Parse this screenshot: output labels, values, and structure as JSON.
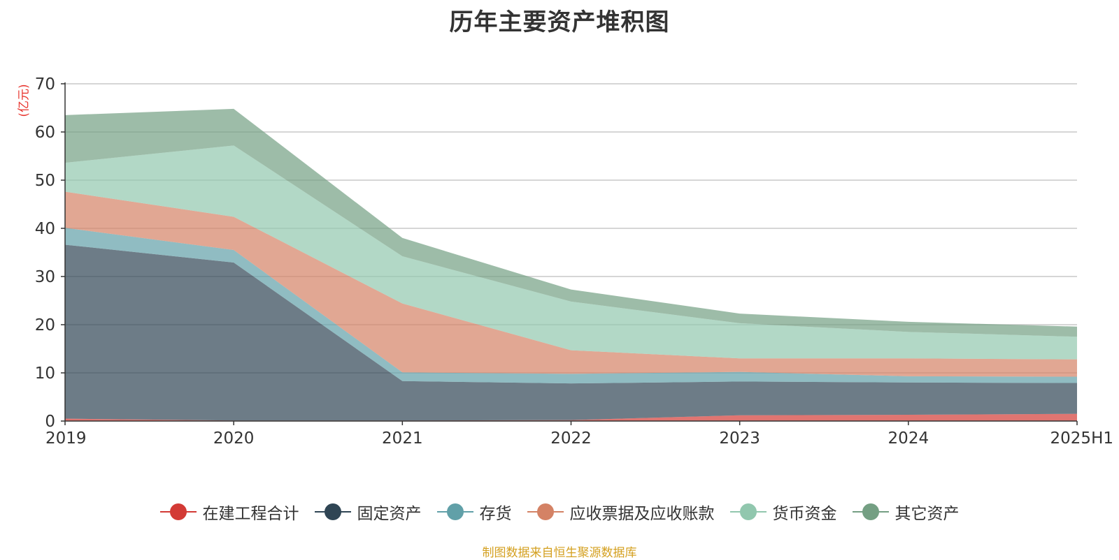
{
  "chart_data": {
    "type": "area",
    "stacked": true,
    "title": "历年主要资产堆积图",
    "y_unit": "(亿元)",
    "source": "制图数据来自恒生聚源数据库",
    "categories": [
      "2019",
      "2020",
      "2021",
      "2022",
      "2023",
      "2024",
      "2025H1"
    ],
    "ylim": [
      0,
      70
    ],
    "yticks": [
      0,
      10,
      20,
      30,
      40,
      50,
      60,
      70
    ],
    "grid": true,
    "legend_position": "bottom",
    "series": [
      {
        "name": "在建工程合计",
        "color": "#d33a35",
        "values": [
          0.5,
          0.1,
          0.1,
          0.2,
          1.2,
          1.3,
          1.5
        ]
      },
      {
        "name": "固定资产",
        "color": "#2f4554",
        "values": [
          36.1,
          32.8,
          8.2,
          7.6,
          7.0,
          6.7,
          6.4
        ]
      },
      {
        "name": "存货",
        "color": "#61a0a8",
        "values": [
          3.5,
          2.6,
          1.8,
          2.0,
          2.0,
          1.3,
          1.3
        ]
      },
      {
        "name": "应收票据及应收账款",
        "color": "#d48265",
        "values": [
          7.5,
          6.9,
          14.3,
          4.9,
          2.8,
          3.7,
          3.6
        ]
      },
      {
        "name": "货币资金",
        "color": "#91c7ae",
        "values": [
          6.0,
          14.8,
          9.8,
          10.1,
          7.3,
          5.5,
          4.7
        ]
      },
      {
        "name": "其它资产",
        "color": "#749f83",
        "values": [
          9.9,
          7.6,
          3.8,
          2.5,
          2.0,
          2.1,
          2.1
        ]
      }
    ]
  }
}
